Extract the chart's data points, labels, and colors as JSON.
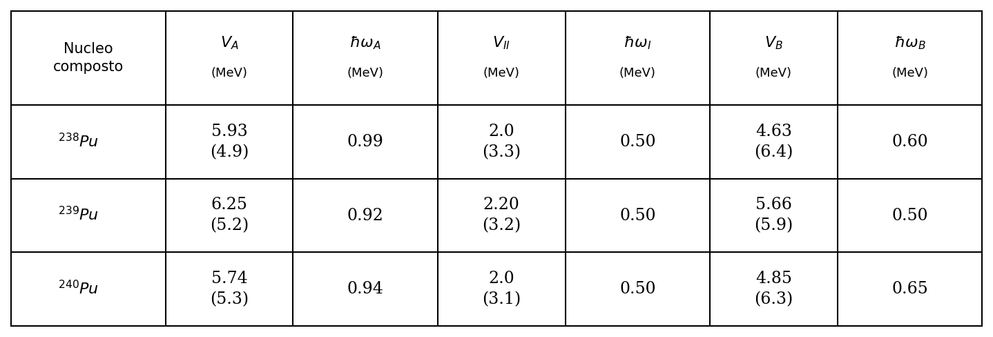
{
  "col_headers": [
    "Nucleo\ncomposto",
    "V_A\n(MeV)",
    "hbar_omega_A\n(MeV)",
    "V_II\n(MeV)",
    "hbar_omega_I\n(MeV)",
    "V_B\n(MeV)",
    "hbar_omega_B\n(MeV)"
  ],
  "rows": [
    {
      "nucleus": "238",
      "element": "Pu",
      "VA": "5.93\n(4.9)",
      "hwA": "0.99",
      "VII": "2.0\n(3.3)",
      "hwI": "0.50",
      "VB": "4.63\n(6.4)",
      "hwB": "0.60"
    },
    {
      "nucleus": "239",
      "element": "Pu",
      "VA": "6.25\n(5.2)",
      "hwA": "0.92",
      "VII": "2.20\n(3.2)",
      "hwI": "0.50",
      "VB": "5.66\n(5.9)",
      "hwB": "0.50"
    },
    {
      "nucleus": "240",
      "element": "Pu",
      "VA": "5.74\n(5.3)",
      "hwA": "0.94",
      "VII": "2.0\n(3.1)",
      "hwI": "0.50",
      "VB": "4.85\n(6.3)",
      "hwB": "0.65"
    }
  ],
  "background_color": "#ffffff",
  "border_color": "#000000",
  "text_color": "#000000",
  "figsize": [
    14.38,
    4.88
  ],
  "dpi": 100
}
